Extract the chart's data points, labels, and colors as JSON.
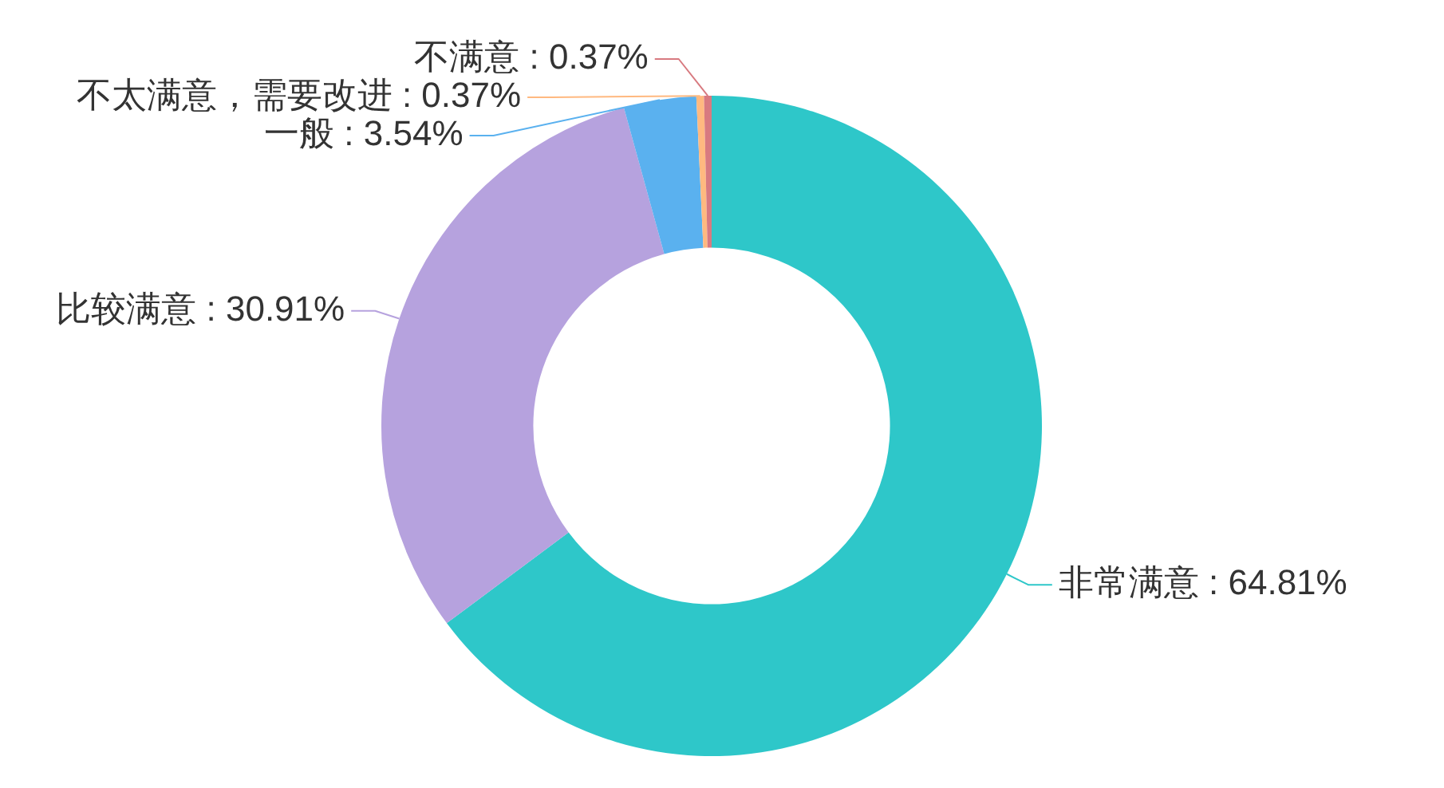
{
  "chart_data": {
    "type": "donut",
    "categories": [
      "非常满意",
      "比较满意",
      "一般",
      "不太满意，需要改进",
      "不满意"
    ],
    "values": [
      64.81,
      30.91,
      3.54,
      0.37,
      0.37
    ],
    "colors": [
      "#2ec7c9",
      "#b6a2de",
      "#5ab1ef",
      "#ffb980",
      "#d87a80"
    ],
    "value_labels": [
      "64.81%",
      "30.91%",
      "3.54%",
      "0.37%",
      "0.37%"
    ]
  }
}
